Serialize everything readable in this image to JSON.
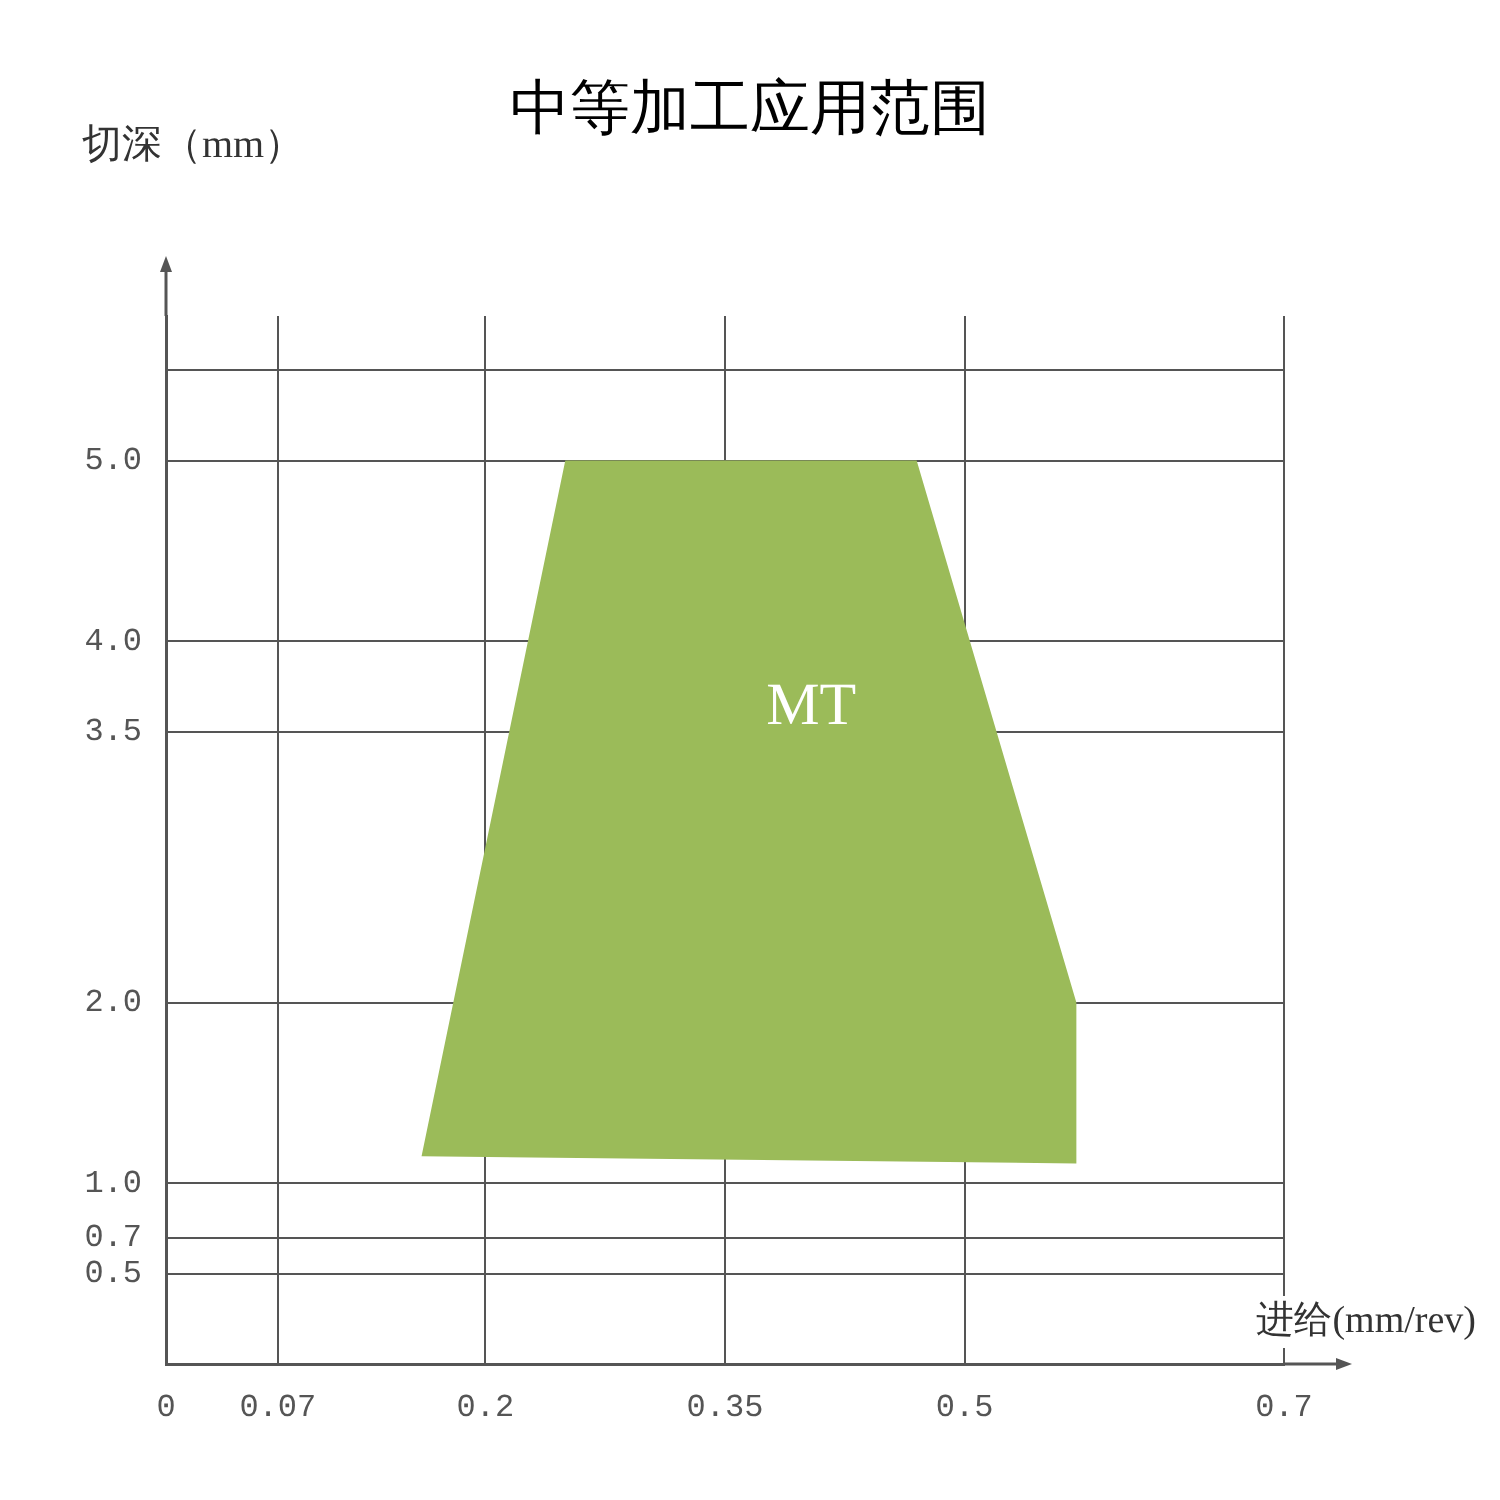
{
  "chart_data": {
    "type": "area",
    "title": "中等加工应用范围",
    "xlabel": "进给(mm/rev)",
    "ylabel": "切深（mm）",
    "xlim": [
      0,
      0.7
    ],
    "xticks": [
      0,
      0.07,
      0.2,
      0.35,
      0.5,
      0.7
    ],
    "ylim": [
      0,
      5.8
    ],
    "yticks": [
      0.5,
      0.7,
      {
        "value": 1,
        "label": "1.0"
      },
      {
        "value": 2,
        "label": "2.0"
      },
      3.5,
      {
        "value": 4,
        "label": "4.0"
      },
      {
        "value": 5,
        "label": "5.0"
      },
      {
        "value": 5.5,
        "label": null
      }
    ],
    "grid": true,
    "legend": false,
    "marker": "none",
    "series": [
      {
        "name": "MT",
        "color": "#9bbb59",
        "x": [
          0.16,
          0.25,
          0.47,
          0.57,
          0.57
        ],
        "values": [
          1.15,
          5,
          5,
          2,
          1.11
        ]
      }
    ]
  }
}
